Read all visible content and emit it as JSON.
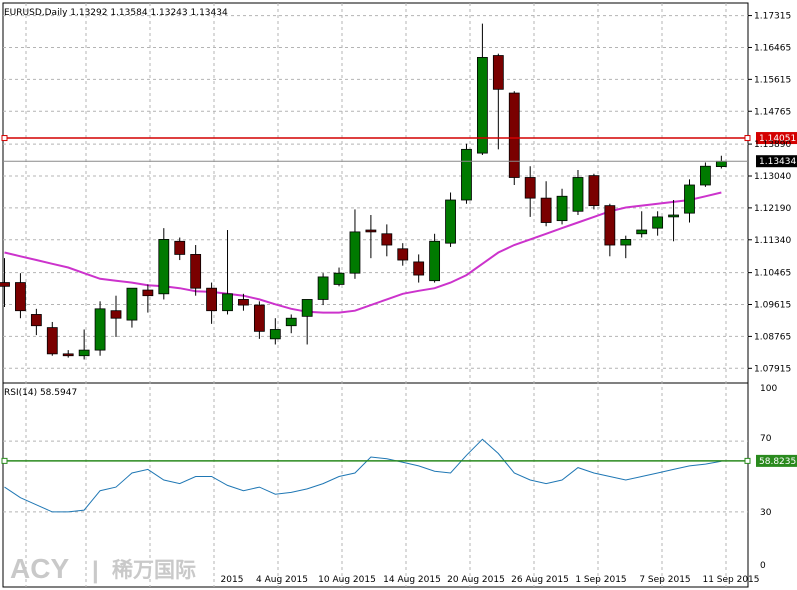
{
  "header": {
    "symbol_line": "EURUSD,Daily  1.13292 1.13584 1.13243 1.13434",
    "rsi_line": "RSI(14) 58.5947"
  },
  "colors": {
    "bull": "#007a00",
    "bear": "#7a0000",
    "ma": "#cc33cc",
    "rsi": "#1f77b4",
    "resistance": "#d40000",
    "rsi_level": "#2a8a1e",
    "grid": "#b4b4b4"
  },
  "logo": {
    "brand": "ACY",
    "sep": "|",
    "cn": "稀万国际"
  },
  "chart_data": {
    "type": "candlestick",
    "price_axis": {
      "ticks": [
        "1.17315",
        "1.16465",
        "1.15615",
        "1.14765",
        "1.13890",
        "1.13040",
        "1.12190",
        "1.11340",
        "1.10465",
        "1.09615",
        "1.08765",
        "1.07915"
      ],
      "range": [
        1.0755,
        1.1765
      ]
    },
    "date_axis": {
      "ticks": [
        "2015",
        "4 Aug 2015",
        "10 Aug 2015",
        "14 Aug 2015",
        "20 Aug 2015",
        "26 Aug 2015",
        "1 Sep 2015",
        "7 Sep 2015",
        "11 Sep 2015"
      ]
    },
    "price_lines": {
      "resistance": {
        "value": 1.14051,
        "label": "1.14051"
      },
      "current": {
        "value": 1.13434,
        "label": "1.13434"
      }
    },
    "candles": [
      {
        "o": 1.102,
        "h": 1.1085,
        "l": 1.0955,
        "c": 1.101
      },
      {
        "o": 1.102,
        "h": 1.1045,
        "l": 1.0925,
        "c": 1.0945
      },
      {
        "o": 1.0935,
        "h": 1.095,
        "l": 1.088,
        "c": 1.0905
      },
      {
        "o": 1.09,
        "h": 1.0915,
        "l": 1.0825,
        "c": 1.083
      },
      {
        "o": 1.083,
        "h": 1.084,
        "l": 1.082,
        "c": 1.0825
      },
      {
        "o": 1.0825,
        "h": 1.0895,
        "l": 1.0815,
        "c": 1.084
      },
      {
        "o": 1.084,
        "h": 1.097,
        "l": 1.0825,
        "c": 1.095
      },
      {
        "o": 1.0945,
        "h": 1.0985,
        "l": 1.0875,
        "c": 1.0925
      },
      {
        "o": 1.092,
        "h": 1.1005,
        "l": 1.09,
        "c": 1.1005
      },
      {
        "o": 1.1,
        "h": 1.1015,
        "l": 1.094,
        "c": 1.0985
      },
      {
        "o": 1.099,
        "h": 1.1165,
        "l": 1.0975,
        "c": 1.1135
      },
      {
        "o": 1.113,
        "h": 1.114,
        "l": 1.108,
        "c": 1.1095
      },
      {
        "o": 1.1095,
        "h": 1.112,
        "l": 1.0985,
        "c": 1.1005
      },
      {
        "o": 1.1005,
        "h": 1.102,
        "l": 1.091,
        "c": 1.0945
      },
      {
        "o": 1.0945,
        "h": 1.116,
        "l": 1.0935,
        "c": 1.099
      },
      {
        "o": 1.0975,
        "h": 1.099,
        "l": 1.0945,
        "c": 1.096
      },
      {
        "o": 1.096,
        "h": 1.097,
        "l": 1.087,
        "c": 1.089
      },
      {
        "o": 1.087,
        "h": 1.0925,
        "l": 1.0855,
        "c": 1.0895
      },
      {
        "o": 1.0905,
        "h": 1.0935,
        "l": 1.0885,
        "c": 1.0925
      },
      {
        "o": 1.093,
        "h": 1.097,
        "l": 1.0855,
        "c": 1.0975
      },
      {
        "o": 1.0975,
        "h": 1.1045,
        "l": 1.096,
        "c": 1.1035
      },
      {
        "o": 1.1015,
        "h": 1.106,
        "l": 1.101,
        "c": 1.1045
      },
      {
        "o": 1.1045,
        "h": 1.1215,
        "l": 1.103,
        "c": 1.1155
      },
      {
        "o": 1.116,
        "h": 1.12,
        "l": 1.1085,
        "c": 1.1155
      },
      {
        "o": 1.115,
        "h": 1.1175,
        "l": 1.109,
        "c": 1.112
      },
      {
        "o": 1.111,
        "h": 1.1125,
        "l": 1.1065,
        "c": 1.108
      },
      {
        "o": 1.1075,
        "h": 1.1095,
        "l": 1.102,
        "c": 1.104
      },
      {
        "o": 1.1025,
        "h": 1.115,
        "l": 1.102,
        "c": 1.113
      },
      {
        "o": 1.1125,
        "h": 1.126,
        "l": 1.1115,
        "c": 1.124
      },
      {
        "o": 1.124,
        "h": 1.139,
        "l": 1.123,
        "c": 1.1375
      },
      {
        "o": 1.1365,
        "h": 1.171,
        "l": 1.136,
        "c": 1.162
      },
      {
        "o": 1.1625,
        "h": 1.163,
        "l": 1.1375,
        "c": 1.1535
      },
      {
        "o": 1.1525,
        "h": 1.153,
        "l": 1.128,
        "c": 1.13
      },
      {
        "o": 1.13,
        "h": 1.133,
        "l": 1.1195,
        "c": 1.1245
      },
      {
        "o": 1.1245,
        "h": 1.129,
        "l": 1.117,
        "c": 1.118
      },
      {
        "o": 1.1185,
        "h": 1.127,
        "l": 1.1175,
        "c": 1.125
      },
      {
        "o": 1.121,
        "h": 1.132,
        "l": 1.12,
        "c": 1.13
      },
      {
        "o": 1.1305,
        "h": 1.131,
        "l": 1.1215,
        "c": 1.1225
      },
      {
        "o": 1.1225,
        "h": 1.123,
        "l": 1.109,
        "c": 1.112
      },
      {
        "o": 1.112,
        "h": 1.1145,
        "l": 1.1085,
        "c": 1.1135
      },
      {
        "o": 1.115,
        "h": 1.121,
        "l": 1.114,
        "c": 1.116
      },
      {
        "o": 1.1165,
        "h": 1.121,
        "l": 1.1145,
        "c": 1.1195
      },
      {
        "o": 1.1195,
        "h": 1.124,
        "l": 1.113,
        "c": 1.12
      },
      {
        "o": 1.1205,
        "h": 1.1295,
        "l": 1.118,
        "c": 1.128
      },
      {
        "o": 1.128,
        "h": 1.134,
        "l": 1.1275,
        "c": 1.133
      },
      {
        "o": 1.1329,
        "h": 1.1358,
        "l": 1.1324,
        "c": 1.1343
      }
    ],
    "ma": [
      1.11,
      1.109,
      1.108,
      1.107,
      1.106,
      1.1045,
      1.103,
      1.1025,
      1.102,
      1.1013,
      1.101,
      1.1005,
      1.0997,
      1.0995,
      1.099,
      1.0985,
      1.0975,
      1.0962,
      1.095,
      1.0942,
      1.094,
      1.094,
      1.0945,
      1.096,
      1.0975,
      1.099,
      1.0998,
      1.1005,
      1.102,
      1.104,
      1.107,
      1.11,
      1.112,
      1.1135,
      1.115,
      1.1165,
      1.118,
      1.1195,
      1.121,
      1.122,
      1.1225,
      1.123,
      1.1235,
      1.124,
      1.125,
      1.126
    ],
    "rsi": {
      "name": "RSI(14)",
      "levels": {
        "value": 58.8235,
        "label": "58.8235"
      },
      "ticks": [
        "100",
        "70",
        "30",
        "0"
      ],
      "values": [
        44,
        38,
        34,
        30,
        30,
        31,
        42,
        44,
        52,
        54,
        48,
        46,
        50,
        50,
        45,
        42,
        44,
        40,
        41,
        43,
        46,
        50,
        52,
        61,
        60,
        58,
        56,
        53,
        52,
        62,
        71,
        63,
        52,
        48,
        46,
        48,
        55,
        52,
        50,
        48,
        50,
        52,
        54,
        56,
        57,
        58.59
      ]
    }
  }
}
